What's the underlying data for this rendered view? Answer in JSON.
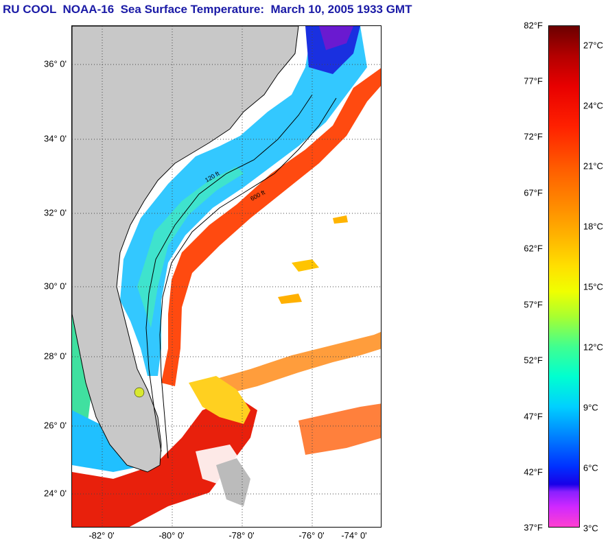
{
  "title": "RU COOL  NOAA-16  Sea Surface Temperature:  March 10, 2005 1933 GMT",
  "map": {
    "lat_labels": [
      "36° 0'",
      "34° 0'",
      "32° 0'",
      "30° 0'",
      "28° 0'",
      "26° 0'",
      "24° 0'"
    ],
    "lon_labels": [
      "-82° 0'",
      "-80° 0'",
      "-78° 0'",
      "-76° 0'",
      "-74° 0'"
    ],
    "contour_labels": [
      "120 ft",
      "600 ft"
    ],
    "colors": {
      "land": "#c8c8c8",
      "cold": "#0040ff",
      "cool": "#00d8ff",
      "warm": "#ff3a10",
      "hot": "#e81c10",
      "mild": "#ffc000"
    }
  },
  "colorbar": {
    "fahrenheit": [
      "82°F",
      "77°F",
      "72°F",
      "67°F",
      "62°F",
      "57°F",
      "52°F",
      "47°F",
      "42°F",
      "37°F"
    ],
    "celsius": [
      "27°C",
      "24°C",
      "21°C",
      "18°C",
      "15°C",
      "12°C",
      "9°C",
      "6°C",
      "3°C"
    ],
    "range_f": [
      37,
      82
    ],
    "range_c": [
      3,
      27
    ]
  }
}
